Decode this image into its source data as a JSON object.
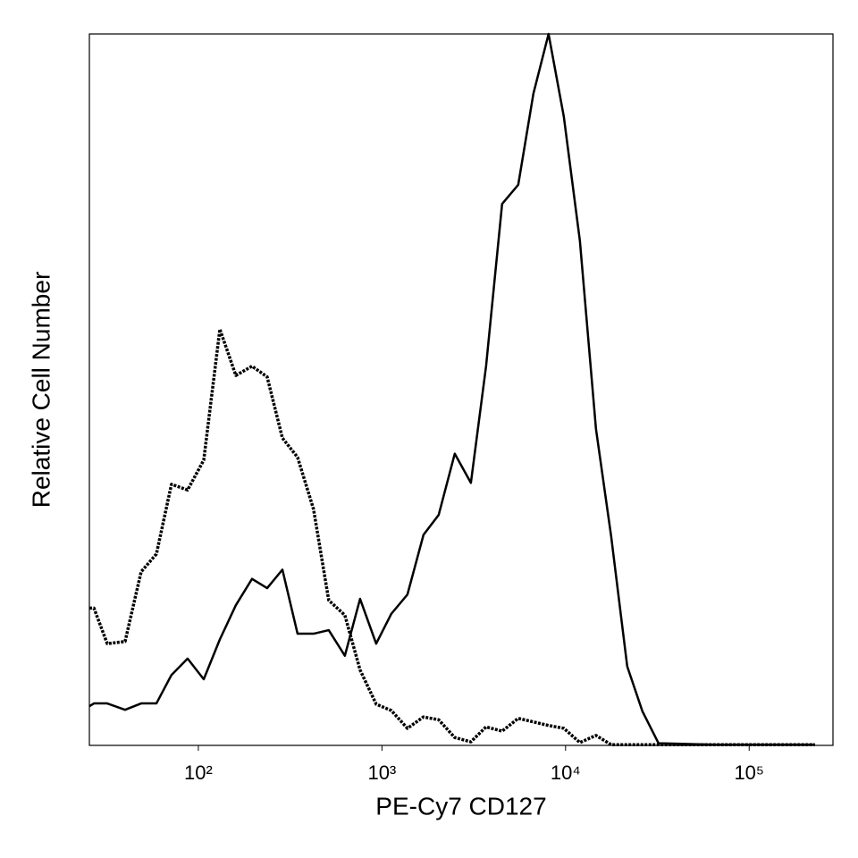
{
  "chart_data": {
    "type": "line",
    "xlabel": "PE-Cy7 CD127",
    "ylabel": "Relative Cell Number",
    "xscale": "log",
    "xlim": [
      25.5,
      286000
    ],
    "ylim": [
      0,
      100
    ],
    "xticks": [
      {
        "value": 100,
        "label": "10²"
      },
      {
        "value": 1000,
        "label": "10³"
      },
      {
        "value": 10000,
        "label": "10⁴"
      },
      {
        "value": 100000,
        "label": "10⁵"
      }
    ],
    "grid": false,
    "x": [
      25.5,
      27,
      31.9,
      39.9,
      48.8,
      59.1,
      71.4,
      87.4,
      107,
      131,
      160,
      196,
      237,
      287,
      347,
      424,
      513,
      628,
      760,
      930,
      1125,
      1376,
      1684,
      2037,
      2492,
      3050,
      3690,
      4512,
      5523,
      6680,
      8080,
      9780,
      11970,
      14640,
      17710,
      21670,
      26210,
      32070,
      65000,
      228000
    ],
    "series": [
      {
        "color": "#000000",
        "style": "solid",
        "values": [
          5.5,
          5.9,
          5.9,
          5.0,
          5.9,
          5.9,
          9.9,
          12.2,
          9.3,
          14.9,
          19.7,
          23.4,
          22.1,
          24.7,
          15.7,
          15.7,
          16.2,
          12.6,
          20.6,
          14.3,
          18.5,
          21.2,
          29.6,
          32.4,
          41.0,
          36.9,
          53.3,
          76.1,
          78.8,
          91.6,
          100,
          88.4,
          70.9,
          44.5,
          29.4,
          11.1,
          4.8,
          0.3,
          0.1,
          0.1
        ]
      },
      {
        "color": "#000000",
        "style": "dashed",
        "values": [
          19.3,
          19.3,
          14.3,
          14.6,
          24.4,
          26.9,
          36.7,
          35.9,
          40.1,
          58.5,
          52.0,
          53.3,
          51.8,
          43.2,
          40.5,
          33.2,
          20.4,
          18.3,
          10.6,
          5.8,
          4.9,
          2.4,
          4.0,
          3.6,
          1.1,
          0.5,
          2.6,
          2.0,
          3.8,
          3.3,
          2.8,
          2.4,
          0.4,
          1.4,
          0.1,
          0.1,
          0.1,
          0.1,
          0.1,
          0.1
        ]
      }
    ]
  }
}
